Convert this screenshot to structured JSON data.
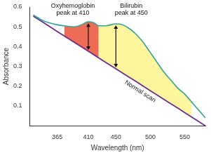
{
  "chart_data": {
    "type": "line",
    "x_label": "Wavelength (nm)",
    "y_label": "Absorbance",
    "x": [
      330,
      345,
      365,
      375,
      390,
      400,
      410,
      418,
      425,
      435,
      450,
      460,
      470,
      480,
      490,
      500,
      510,
      520,
      530,
      540,
      550,
      560,
      570,
      580
    ],
    "series": [
      {
        "color": "#2fa595",
        "values": [
          0.56,
          0.53,
          0.51,
          0.505,
          0.5,
          0.51,
          0.525,
          0.52,
          0.505,
          0.505,
          0.515,
          0.51,
          0.49,
          0.46,
          0.42,
          0.37,
          0.32,
          0.27,
          0.23,
          0.19,
          0.16,
          0.12,
          0.08,
          0.04
        ]
      },
      {
        "name": "Normal scan",
        "color": "#6e2a8c",
        "values": [
          0.554,
          0.521,
          0.476,
          0.454,
          0.421,
          0.399,
          0.377,
          0.359,
          0.343,
          0.321,
          0.288,
          0.266,
          0.244,
          0.222,
          0.199,
          0.177,
          0.155,
          0.133,
          0.111,
          0.089,
          0.066,
          0.044,
          0.022,
          0.0
        ]
      }
    ],
    "regions": [
      {
        "from": 375,
        "to": 425,
        "color": "#ee6b55"
      },
      {
        "from": 425,
        "to": 560,
        "color": "#fff59d"
      }
    ],
    "annotations": [
      {
        "text": [
          "Oxyhemoglobin",
          "peak at 410"
        ],
        "x": 410
      },
      {
        "text": [
          "Bilirubin",
          "peak at 450"
        ],
        "x": 450
      }
    ],
    "xlim": [
      325,
      580
    ],
    "xticks": [
      365,
      410,
      450,
      500,
      550
    ],
    "ylim": [
      0,
      0.6
    ],
    "yticks": [
      0.1,
      0.2,
      0.3,
      0.4,
      0.5,
      0.6
    ],
    "grid": false
  }
}
